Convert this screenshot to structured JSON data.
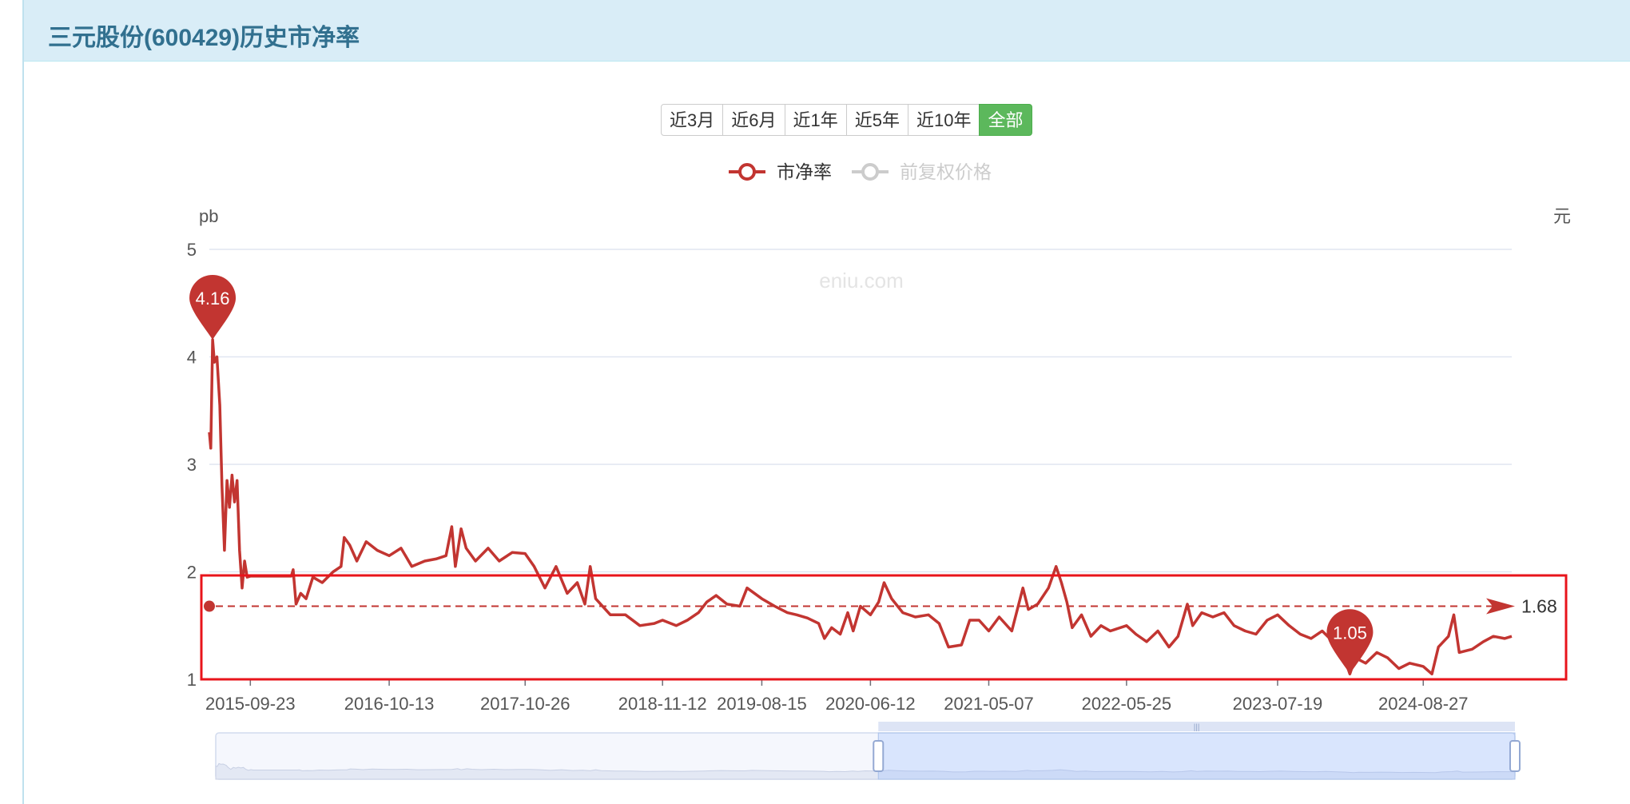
{
  "page": {
    "title": "三元股份(600429)历史市净率"
  },
  "range_buttons": [
    {
      "label": "近3月",
      "active": false
    },
    {
      "label": "近6月",
      "active": false
    },
    {
      "label": "近1年",
      "active": false
    },
    {
      "label": "近5年",
      "active": false
    },
    {
      "label": "近10年",
      "active": false
    },
    {
      "label": "全部",
      "active": true
    }
  ],
  "watermark": "eniu.com",
  "colors": {
    "series": "#c23531",
    "inactive": "#cccccc",
    "grid": "#e0e6f1",
    "active_button": "#5cb85c",
    "header_bg": "#d9edf7",
    "header_text": "#31708f",
    "highlight_box": "#e8141b"
  },
  "chart_data": {
    "type": "line",
    "yaxis_left_name": "pb",
    "yaxis_right_name": "元",
    "ylim": [
      1,
      5
    ],
    "yticks": [
      1,
      2,
      3,
      4,
      5
    ],
    "xlim": [
      "2015-06-01",
      "2025-04-30"
    ],
    "xtick_labels": [
      "2015-09-23",
      "2016-10-13",
      "2017-10-26",
      "2018-11-12",
      "2019-08-15",
      "2020-06-12",
      "2021-05-07",
      "2022-05-25",
      "2023-07-19",
      "2024-08-27"
    ],
    "legend": [
      {
        "name": "市净率",
        "active": true
      },
      {
        "name": "前复权价格",
        "active": false
      }
    ],
    "legend_position": "top-center",
    "grid": true,
    "series": [
      {
        "name": "市净率",
        "points": [
          [
            "2015-06-01",
            3.3
          ],
          [
            "2015-06-05",
            3.15
          ],
          [
            "2015-06-10",
            4.16
          ],
          [
            "2015-06-15",
            3.95
          ],
          [
            "2015-06-22",
            4.0
          ],
          [
            "2015-06-30",
            3.55
          ],
          [
            "2015-07-06",
            2.8
          ],
          [
            "2015-07-13",
            2.2
          ],
          [
            "2015-07-20",
            2.85
          ],
          [
            "2015-07-27",
            2.6
          ],
          [
            "2015-08-03",
            2.9
          ],
          [
            "2015-08-10",
            2.65
          ],
          [
            "2015-08-17",
            2.85
          ],
          [
            "2015-08-24",
            2.2
          ],
          [
            "2015-08-31",
            1.85
          ],
          [
            "2015-09-07",
            2.1
          ],
          [
            "2015-09-14",
            1.95
          ],
          [
            "2015-09-23",
            1.96
          ],
          [
            "2015-11-01",
            1.96
          ],
          [
            "2016-01-15",
            1.96
          ],
          [
            "2016-01-20",
            2.02
          ],
          [
            "2016-01-28",
            1.7
          ],
          [
            "2016-02-10",
            1.8
          ],
          [
            "2016-02-25",
            1.75
          ],
          [
            "2016-03-15",
            1.95
          ],
          [
            "2016-04-10",
            1.9
          ],
          [
            "2016-05-10",
            2.0
          ],
          [
            "2016-06-01",
            2.05
          ],
          [
            "2016-06-10",
            2.32
          ],
          [
            "2016-06-25",
            2.25
          ],
          [
            "2016-07-15",
            2.1
          ],
          [
            "2016-08-10",
            2.28
          ],
          [
            "2016-09-10",
            2.2
          ],
          [
            "2016-10-13",
            2.15
          ],
          [
            "2016-11-15",
            2.22
          ],
          [
            "2016-12-15",
            2.05
          ],
          [
            "2017-01-20",
            2.1
          ],
          [
            "2017-02-20",
            2.12
          ],
          [
            "2017-03-20",
            2.15
          ],
          [
            "2017-04-05",
            2.42
          ],
          [
            "2017-04-15",
            2.05
          ],
          [
            "2017-05-01",
            2.4
          ],
          [
            "2017-05-15",
            2.22
          ],
          [
            "2017-06-10",
            2.1
          ],
          [
            "2017-07-15",
            2.22
          ],
          [
            "2017-08-15",
            2.1
          ],
          [
            "2017-09-20",
            2.18
          ],
          [
            "2017-10-26",
            2.17
          ],
          [
            "2017-11-20",
            2.05
          ],
          [
            "2017-12-20",
            1.85
          ],
          [
            "2018-01-20",
            2.05
          ],
          [
            "2018-02-20",
            1.8
          ],
          [
            "2018-03-20",
            1.9
          ],
          [
            "2018-04-10",
            1.7
          ],
          [
            "2018-04-25",
            2.05
          ],
          [
            "2018-05-10",
            1.75
          ],
          [
            "2018-06-20",
            1.6
          ],
          [
            "2018-08-01",
            1.6
          ],
          [
            "2018-09-10",
            1.5
          ],
          [
            "2018-10-20",
            1.52
          ],
          [
            "2018-11-12",
            1.55
          ],
          [
            "2018-12-20",
            1.5
          ],
          [
            "2019-01-20",
            1.55
          ],
          [
            "2019-02-20",
            1.62
          ],
          [
            "2019-03-15",
            1.72
          ],
          [
            "2019-04-10",
            1.78
          ],
          [
            "2019-05-10",
            1.7
          ],
          [
            "2019-06-15",
            1.68
          ],
          [
            "2019-07-05",
            1.85
          ],
          [
            "2019-08-15",
            1.75
          ],
          [
            "2019-09-20",
            1.68
          ],
          [
            "2019-10-25",
            1.62
          ],
          [
            "2019-11-20",
            1.6
          ],
          [
            "2019-12-20",
            1.57
          ],
          [
            "2020-01-20",
            1.52
          ],
          [
            "2020-02-05",
            1.38
          ],
          [
            "2020-02-25",
            1.48
          ],
          [
            "2020-03-20",
            1.42
          ],
          [
            "2020-04-10",
            1.62
          ],
          [
            "2020-04-25",
            1.45
          ],
          [
            "2020-05-15",
            1.68
          ],
          [
            "2020-06-12",
            1.6
          ],
          [
            "2020-07-05",
            1.72
          ],
          [
            "2020-07-20",
            1.9
          ],
          [
            "2020-08-10",
            1.75
          ],
          [
            "2020-09-10",
            1.62
          ],
          [
            "2020-10-15",
            1.58
          ],
          [
            "2020-11-20",
            1.6
          ],
          [
            "2020-12-20",
            1.52
          ],
          [
            "2021-01-15",
            1.3
          ],
          [
            "2021-02-20",
            1.32
          ],
          [
            "2021-03-15",
            1.55
          ],
          [
            "2021-04-10",
            1.55
          ],
          [
            "2021-05-07",
            1.45
          ],
          [
            "2021-06-05",
            1.58
          ],
          [
            "2021-07-10",
            1.45
          ],
          [
            "2021-08-10",
            1.85
          ],
          [
            "2021-08-25",
            1.65
          ],
          [
            "2021-09-20",
            1.7
          ],
          [
            "2021-10-20",
            1.85
          ],
          [
            "2021-11-10",
            2.05
          ],
          [
            "2021-11-25",
            1.9
          ],
          [
            "2021-12-10",
            1.72
          ],
          [
            "2021-12-25",
            1.48
          ],
          [
            "2022-01-20",
            1.6
          ],
          [
            "2022-02-15",
            1.4
          ],
          [
            "2022-03-15",
            1.5
          ],
          [
            "2022-04-10",
            1.45
          ],
          [
            "2022-05-25",
            1.5
          ],
          [
            "2022-06-20",
            1.42
          ],
          [
            "2022-07-20",
            1.35
          ],
          [
            "2022-08-20",
            1.45
          ],
          [
            "2022-09-20",
            1.3
          ],
          [
            "2022-10-15",
            1.4
          ],
          [
            "2022-11-10",
            1.7
          ],
          [
            "2022-11-25",
            1.5
          ],
          [
            "2022-12-20",
            1.62
          ],
          [
            "2023-01-20",
            1.58
          ],
          [
            "2023-02-20",
            1.62
          ],
          [
            "2023-03-20",
            1.5
          ],
          [
            "2023-04-20",
            1.45
          ],
          [
            "2023-05-20",
            1.42
          ],
          [
            "2023-06-20",
            1.55
          ],
          [
            "2023-07-19",
            1.6
          ],
          [
            "2023-08-20",
            1.5
          ],
          [
            "2023-09-20",
            1.42
          ],
          [
            "2023-10-20",
            1.38
          ],
          [
            "2023-11-20",
            1.45
          ],
          [
            "2023-12-20",
            1.35
          ],
          [
            "2024-01-15",
            1.25
          ],
          [
            "2024-02-05",
            1.05
          ],
          [
            "2024-02-20",
            1.2
          ],
          [
            "2024-03-20",
            1.15
          ],
          [
            "2024-04-20",
            1.25
          ],
          [
            "2024-05-20",
            1.2
          ],
          [
            "2024-06-20",
            1.1
          ],
          [
            "2024-07-20",
            1.15
          ],
          [
            "2024-08-27",
            1.12
          ],
          [
            "2024-09-20",
            1.05
          ],
          [
            "2024-10-08",
            1.3
          ],
          [
            "2024-11-05",
            1.4
          ],
          [
            "2024-11-20",
            1.6
          ],
          [
            "2024-12-05",
            1.25
          ],
          [
            "2025-01-10",
            1.28
          ],
          [
            "2025-02-10",
            1.35
          ],
          [
            "2025-03-10",
            1.4
          ],
          [
            "2025-04-10",
            1.38
          ],
          [
            "2025-04-30",
            1.4
          ]
        ]
      }
    ],
    "markers": [
      {
        "type": "max",
        "label": "4.16",
        "date": "2015-06-10",
        "value": 4.16
      },
      {
        "type": "min",
        "label": "1.05",
        "date": "2024-02-05",
        "value": 1.05
      }
    ],
    "average_line": {
      "value": 1.68,
      "label": "1.68"
    },
    "data_zoom": {
      "start_fraction": 0.51,
      "end_fraction": 1.0
    }
  }
}
